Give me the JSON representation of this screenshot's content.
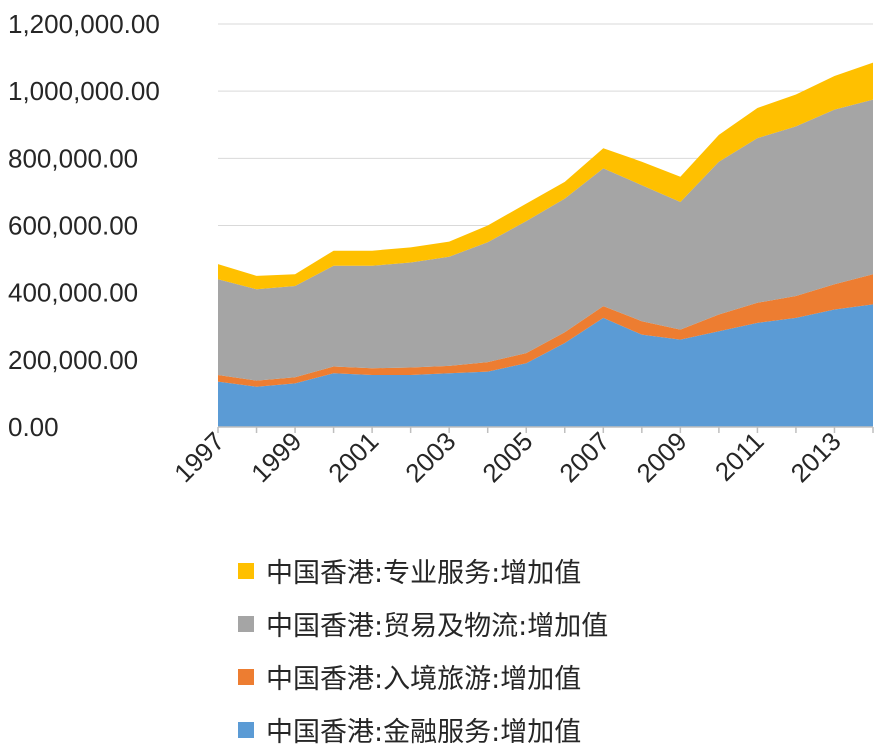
{
  "chart_data": {
    "type": "area",
    "stacked": true,
    "x": [
      1997,
      1998,
      1999,
      2000,
      2001,
      2002,
      2003,
      2004,
      2005,
      2006,
      2007,
      2008,
      2009,
      2010,
      2011,
      2012,
      2013,
      2014
    ],
    "x_tick_labels": [
      "1997",
      "1999",
      "2001",
      "2003",
      "2005",
      "2007",
      "2009",
      "2011",
      "2013"
    ],
    "y_tick_labels": [
      "0.00",
      "200,000.00",
      "400,000.00",
      "600,000.00",
      "800,000.00",
      "1,000,000.00",
      "1,200,000.00"
    ],
    "ylim": [
      0,
      1200000
    ],
    "grid": true,
    "legend_position": "bottom",
    "series": [
      {
        "name": "中国香港:金融服务:增加值",
        "color": "#5b9bd5",
        "values": [
          135000,
          120000,
          130000,
          160000,
          155000,
          155000,
          160000,
          165000,
          190000,
          250000,
          325000,
          275000,
          260000,
          285000,
          310000,
          325000,
          350000,
          365000
        ]
      },
      {
        "name": "中国香港:入境旅游:增加值",
        "color": "#ed7d31",
        "values": [
          20000,
          18000,
          18000,
          20000,
          20000,
          22000,
          22000,
          28000,
          30000,
          32000,
          35000,
          40000,
          30000,
          50000,
          60000,
          65000,
          75000,
          90000
        ]
      },
      {
        "name": "中国香港:贸易及物流:增加值",
        "color": "#a5a5a5",
        "values": [
          285000,
          272000,
          272000,
          300000,
          305000,
          313000,
          325000,
          357000,
          393000,
          398000,
          410000,
          405000,
          380000,
          455000,
          490000,
          505000,
          520000,
          520000
        ]
      },
      {
        "name": "中国香港:专业服务:增加值",
        "color": "#ffc000",
        "values": [
          45000,
          40000,
          35000,
          45000,
          45000,
          45000,
          45000,
          50000,
          52000,
          50000,
          60000,
          70000,
          75000,
          80000,
          90000,
          95000,
          100000,
          110000
        ]
      }
    ]
  }
}
